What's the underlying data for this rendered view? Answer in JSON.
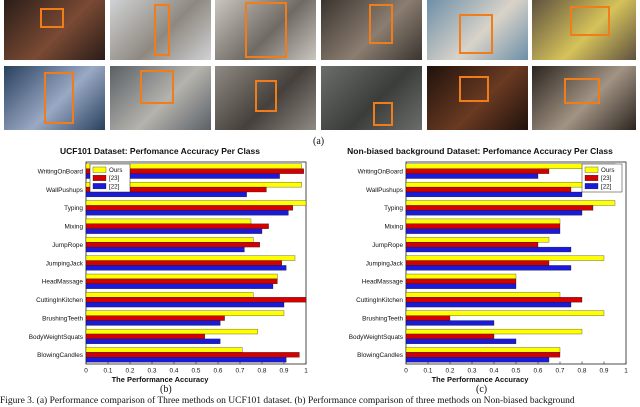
{
  "figure": {
    "label_a": "(a)",
    "label_b": "(b)",
    "label_c": "(c)",
    "caption": "Figure 3. (a) Performance comparison of Three methods on UCF101 dataset. (b) Performance comparison of three methods on Non-biased background"
  },
  "photos": [
    {
      "tone": "#2a1d18",
      "accent": "#7a4a34"
    },
    {
      "tone": "#cfd2d4",
      "accent": "#8e8880"
    },
    {
      "tone": "#c9c6bf",
      "accent": "#6f6a63"
    },
    {
      "tone": "#3a3530",
      "accent": "#8b7d70"
    },
    {
      "tone": "#6d8fa8",
      "accent": "#d9d3c9"
    },
    {
      "tone": "#5e5140",
      "accent": "#d6c35a"
    },
    {
      "tone": "#28405e",
      "accent": "#9aa9c4"
    },
    {
      "tone": "#5a6066",
      "accent": "#b5b3ad"
    },
    {
      "tone": "#8f8a83",
      "accent": "#45403b"
    },
    {
      "tone": "#6a6e6a",
      "accent": "#3b3d3a"
    },
    {
      "tone": "#1f120c",
      "accent": "#6a3a22"
    },
    {
      "tone": "#2b241f",
      "accent": "#a29484"
    }
  ],
  "colors": {
    "ours": "#ffff00",
    "ref23": "#d40000",
    "ref22": "#1a1ad8",
    "box": "#f07d1a"
  },
  "chart_data": [
    {
      "type": "bar",
      "orientation": "horizontal",
      "title": "UCF101 Dataset: Perfomance Accuracy Per Class",
      "xlabel": "The Performance Accuracy",
      "xlim": [
        0,
        1
      ],
      "xticks": [
        "0",
        "0.1",
        "0.2",
        "0.3",
        "0.4",
        "0.5",
        "0.6",
        "0.7",
        "0.8",
        "0.9",
        "1"
      ],
      "legend_position": "top-left",
      "categories": [
        "WritingOnBoard",
        "WallPushups",
        "Typing",
        "Mixing",
        "JumpRope",
        "JumpingJack",
        "HeadMassage",
        "CuttingInKitchen",
        "BrushingTeeth",
        "BodyWeightSquats",
        "BlowingCandles"
      ],
      "series": [
        {
          "name": "Ours",
          "color": "#ffff00",
          "values": [
            0.98,
            0.98,
            1.0,
            0.75,
            0.76,
            0.95,
            0.87,
            0.76,
            0.9,
            0.78,
            0.71
          ]
        },
        {
          "name": "[23]",
          "color": "#d40000",
          "values": [
            0.99,
            0.82,
            0.94,
            0.83,
            0.79,
            0.89,
            0.87,
            1.0,
            0.63,
            0.54,
            0.97
          ]
        },
        {
          "name": "[22]",
          "color": "#1a1ad8",
          "values": [
            0.88,
            0.73,
            0.92,
            0.8,
            0.72,
            0.91,
            0.85,
            0.9,
            0.61,
            0.61,
            0.91
          ]
        }
      ]
    },
    {
      "type": "bar",
      "orientation": "horizontal",
      "title": "Non-biased background Dataset: Perfomance Accuracy Per Class",
      "xlabel": "The Performance Accuracy",
      "xlim": [
        0,
        1
      ],
      "xticks": [
        "0",
        "0.1",
        "0.2",
        "0.3",
        "0.4",
        "0.5",
        "0.6",
        "0.7",
        "0.8",
        "0.9",
        "1"
      ],
      "legend_position": "top-right",
      "categories": [
        "WritingOnBoard",
        "WallPushups",
        "Typing",
        "Mixing",
        "JumpRope",
        "JumpingJack",
        "HeadMassage",
        "CuttingInKitchen",
        "BrushingTeeth",
        "BodyWeightSquats",
        "BlowingCandles"
      ],
      "series": [
        {
          "name": "Ours",
          "color": "#ffff00",
          "values": [
            0.95,
            0.85,
            0.95,
            0.7,
            0.65,
            0.9,
            0.5,
            0.7,
            0.9,
            0.8,
            0.7
          ]
        },
        {
          "name": "[23]",
          "color": "#d40000",
          "values": [
            0.65,
            0.75,
            0.85,
            0.7,
            0.6,
            0.65,
            0.5,
            0.8,
            0.2,
            0.4,
            0.7
          ]
        },
        {
          "name": "[22]",
          "color": "#1a1ad8",
          "values": [
            0.6,
            0.8,
            0.8,
            0.7,
            0.75,
            0.75,
            0.5,
            0.75,
            0.4,
            0.5,
            0.65
          ]
        }
      ]
    }
  ]
}
